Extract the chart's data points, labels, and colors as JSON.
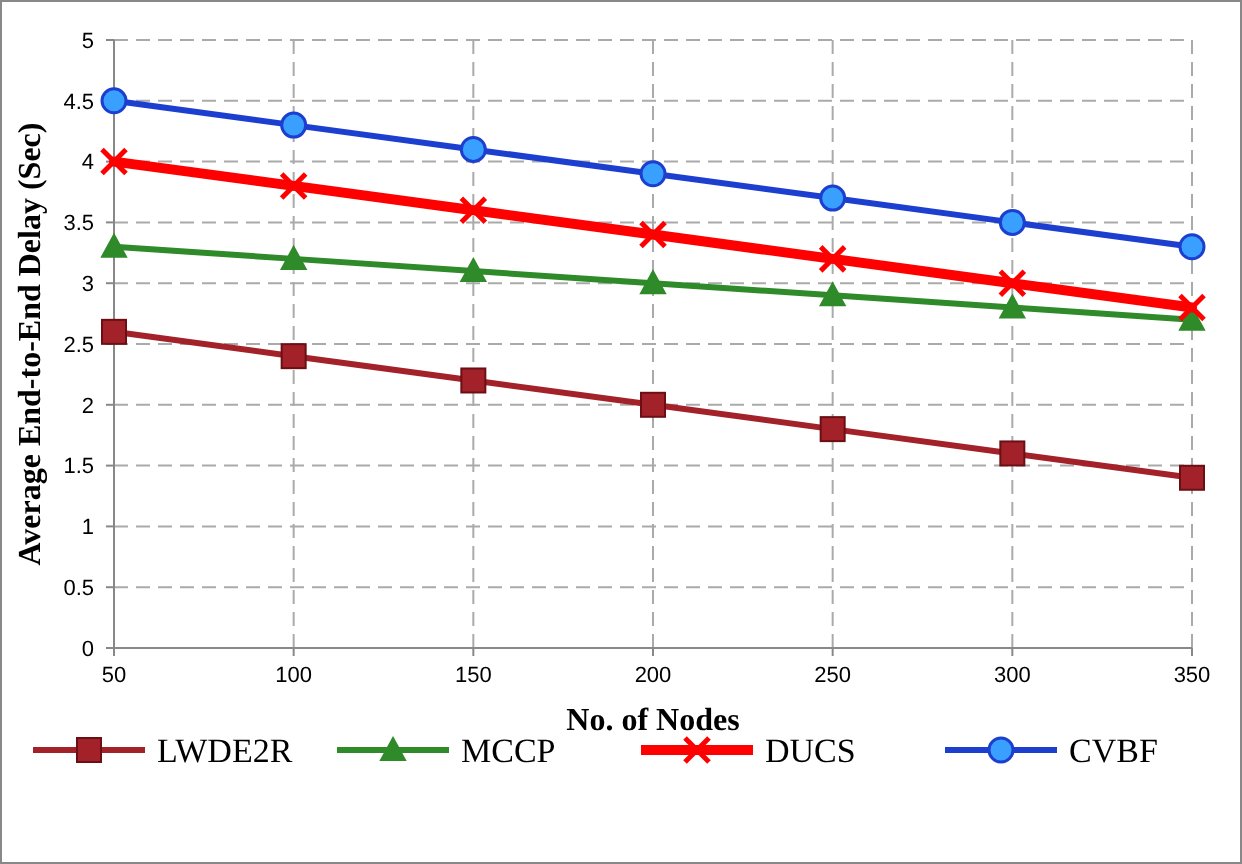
{
  "chart_data": {
    "type": "line",
    "xlabel": "No. of Nodes",
    "ylabel": "Average End-to-End Delay (Sec)",
    "x": [
      50,
      100,
      150,
      200,
      250,
      300,
      350
    ],
    "xlim": [
      50,
      350
    ],
    "xticks": [
      50,
      100,
      150,
      200,
      250,
      300,
      350
    ],
    "ylim": [
      0,
      5
    ],
    "yticks": [
      0,
      0.5,
      1,
      1.5,
      2,
      2.5,
      3,
      3.5,
      4,
      4.5,
      5
    ],
    "grid": true,
    "legend": "bottom",
    "line_style": "solid",
    "series": [
      {
        "name": "LWDE2R",
        "color": "#a3222a",
        "marker": "square",
        "values": [
          2.6,
          2.4,
          2.2,
          2.0,
          1.8,
          1.6,
          1.4
        ]
      },
      {
        "name": "MCCP",
        "color": "#2f8a2a",
        "marker": "triangle",
        "values": [
          3.3,
          3.2,
          3.1,
          3.0,
          2.9,
          2.8,
          2.7
        ]
      },
      {
        "name": "DUCS",
        "color": "#ff0000",
        "marker": "cross",
        "values": [
          4.0,
          3.8,
          3.6,
          3.4,
          3.2,
          3.0,
          2.8
        ]
      },
      {
        "name": "CVBF",
        "color": "#1c3fd0",
        "marker": "circle",
        "values": [
          4.5,
          4.3,
          4.1,
          3.9,
          3.7,
          3.5,
          3.3
        ]
      }
    ]
  }
}
